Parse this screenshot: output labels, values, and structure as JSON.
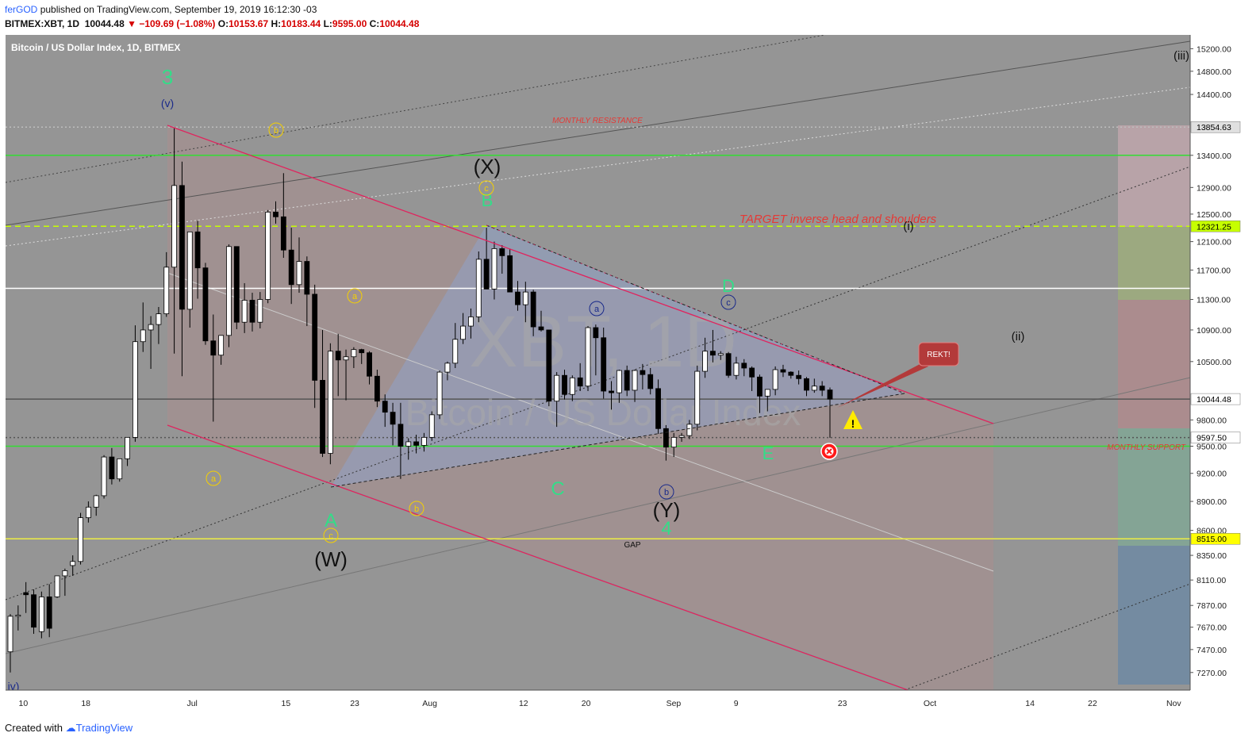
{
  "header": {
    "author": "ferGOD",
    "published_text": "published on TradingView.com, September 19, 2019 16:12:30 -03",
    "symbol_line": "BITMEX:XBT, 1D",
    "last": "10044.48",
    "change": "−109.69 (−1.08%)",
    "o_label": "O:",
    "o": "10153.67",
    "h_label": "H:",
    "h": "10183.44",
    "l_label": "L:",
    "l": "9595.00",
    "c_label": "C:",
    "c": "10044.48"
  },
  "footer": {
    "created_with": "Created with",
    "brand": "TradingView"
  },
  "chart_data": {
    "type": "candlestick",
    "title": "Bitcoin / US Dollar Index, 1D, BITMEX",
    "watermark_symbol": "XBT, 1D",
    "watermark_name": "Bitcoin / US Dollar Index",
    "y_scale": "log",
    "ylim": [
      7120,
      15450
    ],
    "y_ticks": [
      15200,
      14800,
      14400,
      13400,
      12900,
      12500,
      12100,
      11700,
      11300,
      10900,
      10500,
      9800,
      9500,
      9200,
      8900,
      8600,
      8350,
      8110,
      7870,
      7670,
      7470,
      7270
    ],
    "x_ticks": [
      "10",
      "18",
      "Jul",
      "15",
      "23",
      "Aug",
      "12",
      "20",
      "Sep",
      "9",
      "23",
      "Oct",
      "14",
      "22",
      "Nov"
    ],
    "price_labels": [
      {
        "value": 13854.63,
        "text": "13854.63",
        "color": "#e0e0e0",
        "text_color": "#000000"
      },
      {
        "value": 12321.25,
        "text": "12321.25",
        "color": "#c6ff00",
        "text_color": "#000000"
      },
      {
        "value": 10044.48,
        "text": "10044.48",
        "color": "#ffffff",
        "text_color": "#000000"
      },
      {
        "value": 9597.5,
        "text": "9597.50",
        "color": "#ffffff",
        "text_color": "#000000"
      },
      {
        "value": 8515.0,
        "text": "8515.00",
        "color": "#ffff00",
        "text_color": "#000000"
      }
    ],
    "horizontal_lines": [
      {
        "value": 13854.63,
        "color": "#bdbdbd",
        "style": "dotted"
      },
      {
        "value": 13400,
        "color": "#33dd33",
        "style": "solid"
      },
      {
        "value": 12321.25,
        "color": "#c6ff00",
        "style": "dashed"
      },
      {
        "value": 11450,
        "color": "#ffffff",
        "style": "solid"
      },
      {
        "value": 10044.48,
        "color": "#555555",
        "style": "solid"
      },
      {
        "value": 9597.5,
        "color": "#555555",
        "style": "dotted"
      },
      {
        "value": 9500,
        "color": "#33dd33",
        "style": "solid"
      },
      {
        "value": 8515,
        "color": "#eeee44",
        "style": "solid"
      }
    ],
    "candles": [
      {
        "o": 7450,
        "h": 7790,
        "l": 7270,
        "c": 7770
      },
      {
        "o": 7770,
        "h": 7870,
        "l": 7640,
        "c": 7780
      },
      {
        "o": 7990,
        "h": 8090,
        "l": 7800,
        "c": 7970
      },
      {
        "o": 7970,
        "h": 8020,
        "l": 7610,
        "c": 7670
      },
      {
        "o": 7630,
        "h": 8000,
        "l": 7570,
        "c": 7950
      },
      {
        "o": 7950,
        "h": 8070,
        "l": 7580,
        "c": 7660
      },
      {
        "o": 7950,
        "h": 8150,
        "l": 7940,
        "c": 8150
      },
      {
        "o": 8150,
        "h": 8220,
        "l": 7960,
        "c": 8200
      },
      {
        "o": 8250,
        "h": 8350,
        "l": 8150,
        "c": 8290
      },
      {
        "o": 8290,
        "h": 8780,
        "l": 8260,
        "c": 8730
      },
      {
        "o": 8730,
        "h": 8900,
        "l": 8680,
        "c": 8840
      },
      {
        "o": 8840,
        "h": 8970,
        "l": 8750,
        "c": 8960
      },
      {
        "o": 8960,
        "h": 9400,
        "l": 8930,
        "c": 9380
      },
      {
        "o": 9380,
        "h": 9480,
        "l": 9080,
        "c": 9140
      },
      {
        "o": 9140,
        "h": 9350,
        "l": 9110,
        "c": 9360
      },
      {
        "o": 9360,
        "h": 9600,
        "l": 9280,
        "c": 9600
      },
      {
        "o": 9600,
        "h": 10960,
        "l": 9550,
        "c": 10750
      },
      {
        "o": 10750,
        "h": 11260,
        "l": 10620,
        "c": 10900
      },
      {
        "o": 10900,
        "h": 11080,
        "l": 10410,
        "c": 10970
      },
      {
        "o": 10970,
        "h": 11200,
        "l": 10720,
        "c": 11110
      },
      {
        "o": 11110,
        "h": 11950,
        "l": 11070,
        "c": 11740
      },
      {
        "o": 11740,
        "h": 13840,
        "l": 10600,
        "c": 12930
      },
      {
        "o": 12930,
        "h": 13300,
        "l": 10320,
        "c": 11170
      },
      {
        "o": 11170,
        "h": 12220,
        "l": 10930,
        "c": 12240
      },
      {
        "o": 12240,
        "h": 12400,
        "l": 11310,
        "c": 11730
      },
      {
        "o": 11730,
        "h": 11800,
        "l": 10710,
        "c": 10760
      },
      {
        "o": 10760,
        "h": 11100,
        "l": 9780,
        "c": 10580
      },
      {
        "o": 10580,
        "h": 10800,
        "l": 10460,
        "c": 10830
      },
      {
        "o": 10830,
        "h": 12060,
        "l": 10680,
        "c": 12030
      },
      {
        "o": 12030,
        "h": 12000,
        "l": 10910,
        "c": 11000
      },
      {
        "o": 11000,
        "h": 11520,
        "l": 10860,
        "c": 11290
      },
      {
        "o": 11290,
        "h": 11390,
        "l": 10880,
        "c": 11000
      },
      {
        "o": 11000,
        "h": 11400,
        "l": 10920,
        "c": 11300
      },
      {
        "o": 11300,
        "h": 12560,
        "l": 11250,
        "c": 12530
      },
      {
        "o": 12530,
        "h": 12690,
        "l": 12360,
        "c": 12460
      },
      {
        "o": 12460,
        "h": 13120,
        "l": 11870,
        "c": 11980
      },
      {
        "o": 11980,
        "h": 12300,
        "l": 11240,
        "c": 11500
      },
      {
        "o": 11500,
        "h": 12160,
        "l": 11390,
        "c": 11820
      },
      {
        "o": 11820,
        "h": 11890,
        "l": 10950,
        "c": 11370
      },
      {
        "o": 11370,
        "h": 11500,
        "l": 9940,
        "c": 10270
      },
      {
        "o": 10270,
        "h": 10900,
        "l": 9380,
        "c": 9420
      },
      {
        "o": 9420,
        "h": 10730,
        "l": 9300,
        "c": 10630
      },
      {
        "o": 10630,
        "h": 10850,
        "l": 10080,
        "c": 10520
      },
      {
        "o": 10520,
        "h": 10650,
        "l": 10030,
        "c": 10560
      },
      {
        "o": 10560,
        "h": 10680,
        "l": 10420,
        "c": 10650
      },
      {
        "o": 10650,
        "h": 10660,
        "l": 10470,
        "c": 10610
      },
      {
        "o": 10610,
        "h": 10630,
        "l": 10220,
        "c": 10320
      },
      {
        "o": 10320,
        "h": 10400,
        "l": 9950,
        "c": 10020
      },
      {
        "o": 10020,
        "h": 10100,
        "l": 9720,
        "c": 9890
      },
      {
        "o": 9890,
        "h": 10000,
        "l": 9510,
        "c": 9750
      },
      {
        "o": 9750,
        "h": 10000,
        "l": 9140,
        "c": 9500
      },
      {
        "o": 9500,
        "h": 9590,
        "l": 9350,
        "c": 9550
      },
      {
        "o": 9550,
        "h": 9630,
        "l": 9420,
        "c": 9510
      },
      {
        "o": 9510,
        "h": 9650,
        "l": 9440,
        "c": 9600
      },
      {
        "o": 9600,
        "h": 9900,
        "l": 9560,
        "c": 9860
      },
      {
        "o": 9860,
        "h": 10390,
        "l": 9810,
        "c": 10370
      },
      {
        "o": 10370,
        "h": 10500,
        "l": 10270,
        "c": 10480
      },
      {
        "o": 10480,
        "h": 10990,
        "l": 10420,
        "c": 10780
      },
      {
        "o": 10780,
        "h": 11120,
        "l": 10720,
        "c": 10950
      },
      {
        "o": 10950,
        "h": 11180,
        "l": 10790,
        "c": 11070
      },
      {
        "o": 11070,
        "h": 11960,
        "l": 11000,
        "c": 11850
      },
      {
        "o": 11850,
        "h": 12300,
        "l": 11460,
        "c": 11440
      },
      {
        "o": 11440,
        "h": 12100,
        "l": 11300,
        "c": 12000
      },
      {
        "o": 12000,
        "h": 12050,
        "l": 11650,
        "c": 11900
      },
      {
        "o": 11900,
        "h": 12000,
        "l": 11410,
        "c": 11400
      },
      {
        "o": 11400,
        "h": 11550,
        "l": 11150,
        "c": 11230
      },
      {
        "o": 11230,
        "h": 11540,
        "l": 11000,
        "c": 11400
      },
      {
        "o": 11400,
        "h": 11430,
        "l": 10820,
        "c": 10940
      },
      {
        "o": 10940,
        "h": 11150,
        "l": 10880,
        "c": 10900
      },
      {
        "o": 10900,
        "h": 10900,
        "l": 9960,
        "c": 10020
      },
      {
        "o": 10020,
        "h": 10370,
        "l": 9720,
        "c": 10330
      },
      {
        "o": 10330,
        "h": 10400,
        "l": 10040,
        "c": 10100
      },
      {
        "o": 10100,
        "h": 10330,
        "l": 10020,
        "c": 10300
      },
      {
        "o": 10300,
        "h": 10480,
        "l": 10140,
        "c": 10200
      },
      {
        "o": 10200,
        "h": 10950,
        "l": 10140,
        "c": 10930
      },
      {
        "o": 10930,
        "h": 10970,
        "l": 10330,
        "c": 10800
      },
      {
        "o": 10800,
        "h": 10930,
        "l": 10050,
        "c": 10140
      },
      {
        "o": 10140,
        "h": 10260,
        "l": 9920,
        "c": 10120
      },
      {
        "o": 10120,
        "h": 10400,
        "l": 10000,
        "c": 10390
      },
      {
        "o": 10390,
        "h": 10450,
        "l": 10080,
        "c": 10150
      },
      {
        "o": 10150,
        "h": 10400,
        "l": 10010,
        "c": 10390
      },
      {
        "o": 10390,
        "h": 10470,
        "l": 10160,
        "c": 10340
      },
      {
        "o": 10340,
        "h": 10420,
        "l": 10100,
        "c": 10170
      },
      {
        "o": 10170,
        "h": 10280,
        "l": 9640,
        "c": 9700
      },
      {
        "o": 9700,
        "h": 9740,
        "l": 9340,
        "c": 9490
      },
      {
        "o": 9490,
        "h": 9650,
        "l": 9380,
        "c": 9600
      },
      {
        "o": 9600,
        "h": 9650,
        "l": 9550,
        "c": 9620
      },
      {
        "o": 9620,
        "h": 9800,
        "l": 9580,
        "c": 9750
      },
      {
        "o": 9750,
        "h": 10450,
        "l": 9680,
        "c": 10380
      },
      {
        "o": 10380,
        "h": 10800,
        "l": 10300,
        "c": 10630
      },
      {
        "o": 10630,
        "h": 10900,
        "l": 10490,
        "c": 10580
      },
      {
        "o": 10580,
        "h": 10630,
        "l": 10520,
        "c": 10600
      },
      {
        "o": 10600,
        "h": 10620,
        "l": 10300,
        "c": 10330
      },
      {
        "o": 10330,
        "h": 10560,
        "l": 10280,
        "c": 10480
      },
      {
        "o": 10480,
        "h": 10530,
        "l": 10320,
        "c": 10420
      },
      {
        "o": 10420,
        "h": 10440,
        "l": 10140,
        "c": 10310
      },
      {
        "o": 10310,
        "h": 10340,
        "l": 9880,
        "c": 10080
      },
      {
        "o": 10080,
        "h": 10140,
        "l": 9900,
        "c": 10160
      },
      {
        "o": 10160,
        "h": 10440,
        "l": 10090,
        "c": 10400
      },
      {
        "o": 10400,
        "h": 10460,
        "l": 10310,
        "c": 10370
      },
      {
        "o": 10370,
        "h": 10380,
        "l": 10290,
        "c": 10330
      },
      {
        "o": 10330,
        "h": 10390,
        "l": 10220,
        "c": 10290
      },
      {
        "o": 10290,
        "h": 10310,
        "l": 10080,
        "c": 10150
      },
      {
        "o": 10150,
        "h": 10290,
        "l": 10120,
        "c": 10200
      },
      {
        "o": 10200,
        "h": 10260,
        "l": 10080,
        "c": 10150
      },
      {
        "o": 10153.67,
        "h": 10183.44,
        "l": 9595,
        "c": 10044.48
      }
    ],
    "annotations": {
      "monthly_resistance": "MONTHLY RESISTANCE",
      "monthly_support": "MONTHLY SUPPORT",
      "target": "TARGET inverse head and shoulders",
      "gap": "GAP",
      "rekt": "REKT!",
      "wave_3": "3",
      "wave_v": "(v)",
      "wave_iv": "iv)",
      "wave_X": "(X)",
      "wave_W": "(W)",
      "wave_Y": "(Y)",
      "wave_A": "A",
      "wave_B": "B",
      "wave_C": "C",
      "wave_D": "D",
      "wave_E": "E",
      "wave_4": "4",
      "wave_i": "(i)",
      "wave_ii": "(ii)",
      "wave_iii": "(iii)",
      "circ_a": "a",
      "circ_b": "b",
      "circ_c": "c"
    },
    "colors": {
      "bg": "#959595",
      "up": "#ffffff",
      "down": "#000000",
      "channel": "#e0245e",
      "green_label": "#33dd88",
      "yellow_label": "#f5d000",
      "navy_label": "#1a2a8a",
      "triangle_fill": "#8fa3c8"
    }
  }
}
